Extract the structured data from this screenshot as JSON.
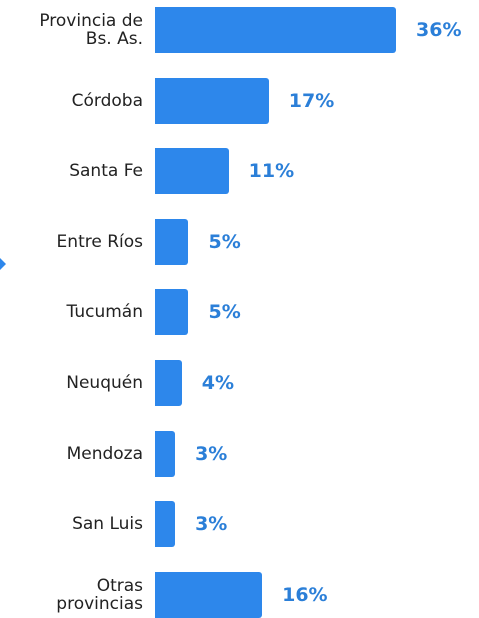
{
  "chart_data": {
    "type": "bar",
    "orientation": "horizontal",
    "color": "#2d87eb",
    "categories": [
      "Provincia de\nBs. As.",
      "Córdoba",
      "Santa Fe",
      "Entre Ríos",
      "Tucumán",
      "Neuquén",
      "Mendoza",
      "San Luis",
      "Otras\nprovincias"
    ],
    "values": [
      36,
      17,
      11,
      5,
      5,
      4,
      3,
      3,
      16
    ],
    "value_labels": [
      "36%",
      "17%",
      "11%",
      "5%",
      "5%",
      "4%",
      "3%",
      "3%",
      "16%"
    ]
  }
}
